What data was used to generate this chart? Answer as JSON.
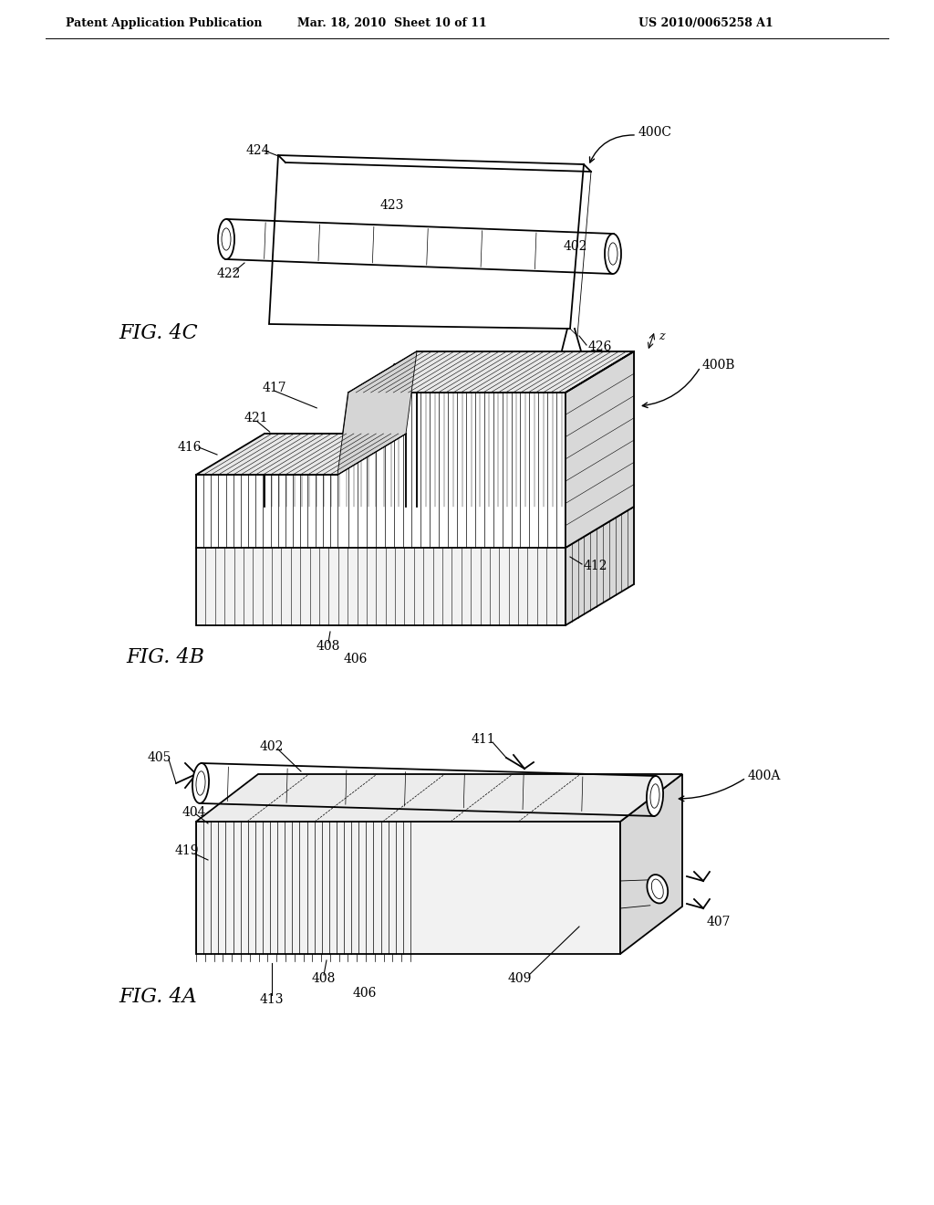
{
  "bg_color": "#ffffff",
  "header_left": "Patent Application Publication",
  "header_mid": "Mar. 18, 2010  Sheet 10 of 11",
  "header_right": "US 2010/0065258 A1",
  "fig4c_label": "FIG. 4C",
  "fig4b_label": "FIG. 4B",
  "fig4a_label": "FIG. 4A",
  "line_color": "#000000",
  "line_width": 1.3,
  "thin_line": 0.6,
  "gray_light": "#f2f2f2",
  "gray_mid": "#d8d8d8",
  "gray_dark": "#c0c0c0"
}
